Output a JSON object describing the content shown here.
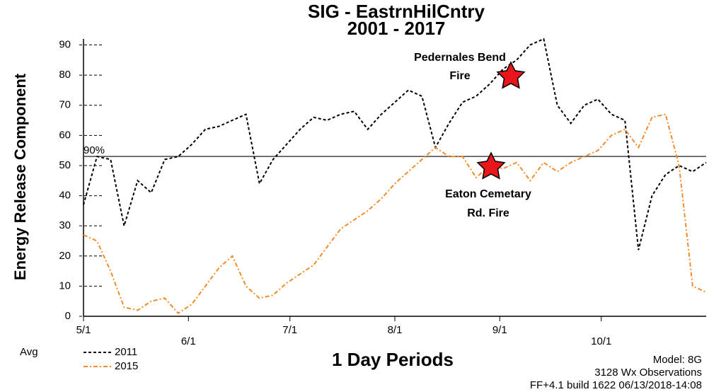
{
  "chart_data": {
    "type": "line",
    "title": [
      "SIG - EastrnHilCntry",
      "2001 - 2017"
    ],
    "x_label": "1 Day Periods",
    "y_label": "Energy Release Component",
    "legend_title": "Avg",
    "x": [
      0,
      4,
      8,
      12,
      16,
      20,
      24,
      28,
      32,
      36,
      40,
      44,
      48,
      52,
      56,
      60,
      64,
      68,
      72,
      76,
      80,
      84,
      88,
      92,
      96,
      100,
      104,
      108,
      112,
      116,
      120,
      124,
      128,
      132,
      136,
      140,
      144,
      148,
      152,
      156,
      160,
      164,
      168,
      172,
      176,
      180,
      184
    ],
    "series": [
      {
        "name": "2011",
        "color": "#000000",
        "dash": "4,3",
        "values": [
          37,
          53,
          52,
          30,
          45,
          41,
          52,
          53,
          57,
          62,
          63,
          65,
          67,
          44,
          52,
          57,
          62,
          66,
          65,
          67,
          68,
          62,
          67,
          71,
          75,
          73,
          56,
          64,
          71,
          73,
          77,
          82,
          85,
          90,
          92,
          70,
          64,
          70,
          72,
          67,
          65,
          22,
          40,
          47,
          50,
          48,
          51
        ]
      },
      {
        "name": "2015",
        "color": "#f28c28",
        "dash": "6,3,2,3",
        "values": [
          27,
          25,
          15,
          3,
          2,
          5,
          6,
          1,
          4,
          10,
          16,
          20,
          10,
          6,
          7,
          11,
          14,
          17,
          23,
          29,
          32,
          35,
          39,
          44,
          48,
          52,
          56,
          53,
          53,
          46,
          50,
          49,
          51,
          45,
          51,
          48,
          51,
          53,
          55,
          60,
          62,
          56,
          66,
          67,
          50,
          10,
          8
        ]
      }
    ],
    "xlim": [
      0,
      184
    ],
    "xticks": [
      {
        "value": 0,
        "label": "5/1"
      },
      {
        "value": 31,
        "label": "6/1"
      },
      {
        "value": 61,
        "label": "7/1"
      },
      {
        "value": 92,
        "label": "8/1"
      },
      {
        "value": 123,
        "label": "9/1"
      },
      {
        "value": 153,
        "label": "10/1"
      }
    ],
    "ylim": [
      0,
      92
    ],
    "yticks": [
      0,
      10,
      20,
      30,
      40,
      50,
      60,
      70,
      80,
      90
    ],
    "percentile_line": {
      "label": "90%",
      "value": 53
    },
    "annotations": [
      {
        "lines": [
          "Pedernales Bend",
          "Fire"
        ]
      },
      {
        "lines": [
          "Eaton Cemetary",
          "Rd. Fire"
        ]
      }
    ],
    "footer": [
      "Model: 8G",
      "3128 Wx Observations",
      "FF+4.1 build 1622 06/13/2018-14:08"
    ]
  }
}
